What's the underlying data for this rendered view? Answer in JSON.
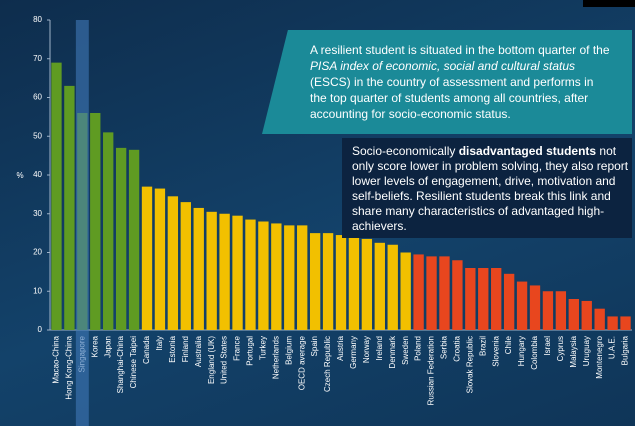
{
  "chart_data": {
    "type": "bar",
    "y_label": "%",
    "categories": [
      "Macao-China",
      "Hong Kong-China",
      "Singapore",
      "Korea",
      "Japan",
      "Shanghai-China",
      "Chinese Taipei",
      "Canada",
      "Italy",
      "Estonia",
      "Finland",
      "Australia",
      "England (UK)",
      "United States",
      "France",
      "Portugal",
      "Turkey",
      "Netherlands",
      "Belgium",
      "OECD average",
      "Spain",
      "Czech Republic",
      "Austria",
      "Germany",
      "Norway",
      "Ireland",
      "Denmark",
      "Sweden",
      "Poland",
      "Russian Federation",
      "Serbia",
      "Croatia",
      "Slovak Republic",
      "Brazil",
      "Slovenia",
      "Chile",
      "Hungary",
      "Colombia",
      "Israel",
      "Cyprus",
      "Malaysia",
      "Uruguay",
      "Montenegro",
      "U.A.E.",
      "Bulgaria"
    ],
    "values": [
      69,
      63,
      56,
      56,
      51,
      47,
      46.5,
      37,
      36.5,
      34.5,
      33,
      31.5,
      30.5,
      30,
      29.5,
      28.5,
      28,
      27.5,
      27,
      27,
      25,
      25,
      24.5,
      24,
      23.5,
      22.5,
      22,
      20,
      19.5,
      19,
      19,
      18,
      16,
      16,
      16,
      14.5,
      12.5,
      11.5,
      10,
      10,
      8,
      7.5,
      5.5,
      3.5,
      3.5
    ],
    "colors": [
      "#5f9b22",
      "#5f9b22",
      "#5f9b22",
      "#5f9b22",
      "#5f9b22",
      "#5f9b22",
      "#5f9b22",
      "#f2c000",
      "#f2c000",
      "#f2c000",
      "#f2c000",
      "#f2c000",
      "#f2c000",
      "#f2c000",
      "#f2c000",
      "#f2c000",
      "#f2c000",
      "#f2c000",
      "#f2c000",
      "#f2c000",
      "#f2c000",
      "#f2c000",
      "#f2c000",
      "#f2c000",
      "#f2c000",
      "#f2c000",
      "#f2c000",
      "#f2c000",
      "#e8461e",
      "#e8461e",
      "#e8461e",
      "#e8461e",
      "#e8461e",
      "#e8461e",
      "#e8461e",
      "#e8461e",
      "#e8461e",
      "#e8461e",
      "#e8461e",
      "#e8461e",
      "#e8461e",
      "#e8461e",
      "#e8461e",
      "#e8461e",
      "#e8461e"
    ],
    "highlight_index": 2,
    "highlight_color": "#3f78b8",
    "ylim": [
      0,
      80
    ],
    "yticks": [
      0,
      10,
      20,
      30,
      40,
      50,
      60,
      70,
      80
    ],
    "annotation_1": [
      "A resilient student  is situated in the bottom quarter of the ",
      "PISA index of economic, social and cultural status",
      " (ESCS) in the country of assessment and performs in the top quarter of students among all countries, after accounting for socio-economic status."
    ],
    "annotation_2": [
      "Socio-economically ",
      "disadvantaged students",
      " not only score lower in problem solving, they also report lower levels of engagement, drive, motivation and self-beliefs. Resilient students break this link and share many characteristics of advantaged high-achievers."
    ]
  }
}
